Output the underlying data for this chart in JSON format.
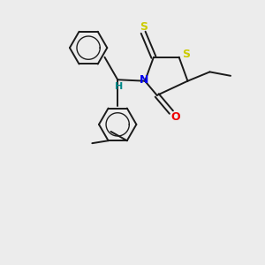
{
  "background_color": "#ececec",
  "bond_color": "#1a1a1a",
  "atom_colors": {
    "S": "#cccc00",
    "N": "#0000ee",
    "O": "#ee0000",
    "H": "#008888",
    "C": "#1a1a1a"
  },
  "figsize": [
    3.0,
    3.0
  ],
  "dpi": 100
}
